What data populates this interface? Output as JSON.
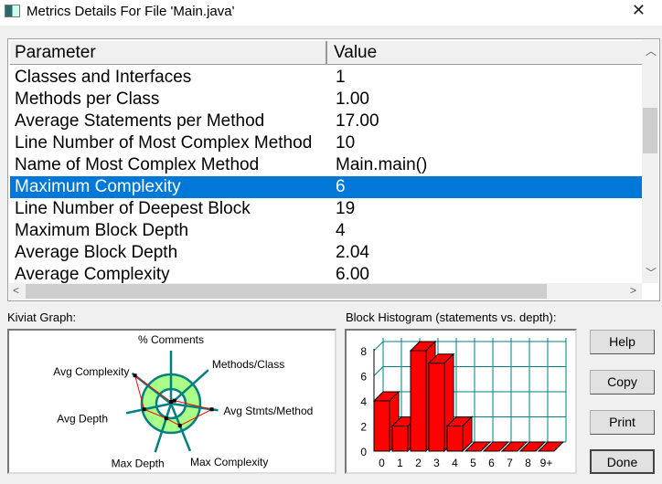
{
  "window": {
    "title": "Metrics Details For File 'Main.java'",
    "close": "✕"
  },
  "table": {
    "headers": [
      "Parameter",
      "Value"
    ],
    "rows": [
      {
        "param": "Classes and Interfaces",
        "value": "1"
      },
      {
        "param": "Methods per Class",
        "value": "1.00"
      },
      {
        "param": "Average Statements per Method",
        "value": "17.00"
      },
      {
        "param": "Line Number of Most Complex Method",
        "value": "10"
      },
      {
        "param": "Name of Most Complex Method",
        "value": "Main.main()"
      },
      {
        "param": "Maximum Complexity",
        "value": "6",
        "selected": true
      },
      {
        "param": "Line Number of Deepest Block",
        "value": "19"
      },
      {
        "param": "Maximum Block Depth",
        "value": "4"
      },
      {
        "param": "Average Block Depth",
        "value": "2.04"
      },
      {
        "param": "Average Complexity",
        "value": "6.00"
      }
    ]
  },
  "kiviat": {
    "label": "Kiviat Graph:",
    "axes": [
      "% Comments",
      "Methods/Class",
      "Avg Stmts/Method",
      "Max Complexity",
      "Max Depth",
      "Avg Depth",
      "Avg Complexity"
    ],
    "colors": {
      "ring": "#008080",
      "band": "#aaff88",
      "line": "#ff0000"
    }
  },
  "histogram": {
    "label": "Block Histogram (statements vs. depth):",
    "chart_data": {
      "type": "bar",
      "categories": [
        "0",
        "1",
        "2",
        "3",
        "4",
        "5",
        "6",
        "7",
        "8",
        "9+"
      ],
      "values": [
        4,
        2,
        8,
        7,
        2,
        0,
        0,
        0,
        0,
        0
      ],
      "yticks": [
        "0",
        "2",
        "4",
        "6",
        "8"
      ],
      "ylim": [
        0,
        8
      ],
      "grid": true,
      "bar_color": "#ff0000",
      "grid_color": "#008080"
    }
  },
  "buttons": {
    "help": "Help",
    "copy": "Copy",
    "print": "Print",
    "done": "Done"
  }
}
